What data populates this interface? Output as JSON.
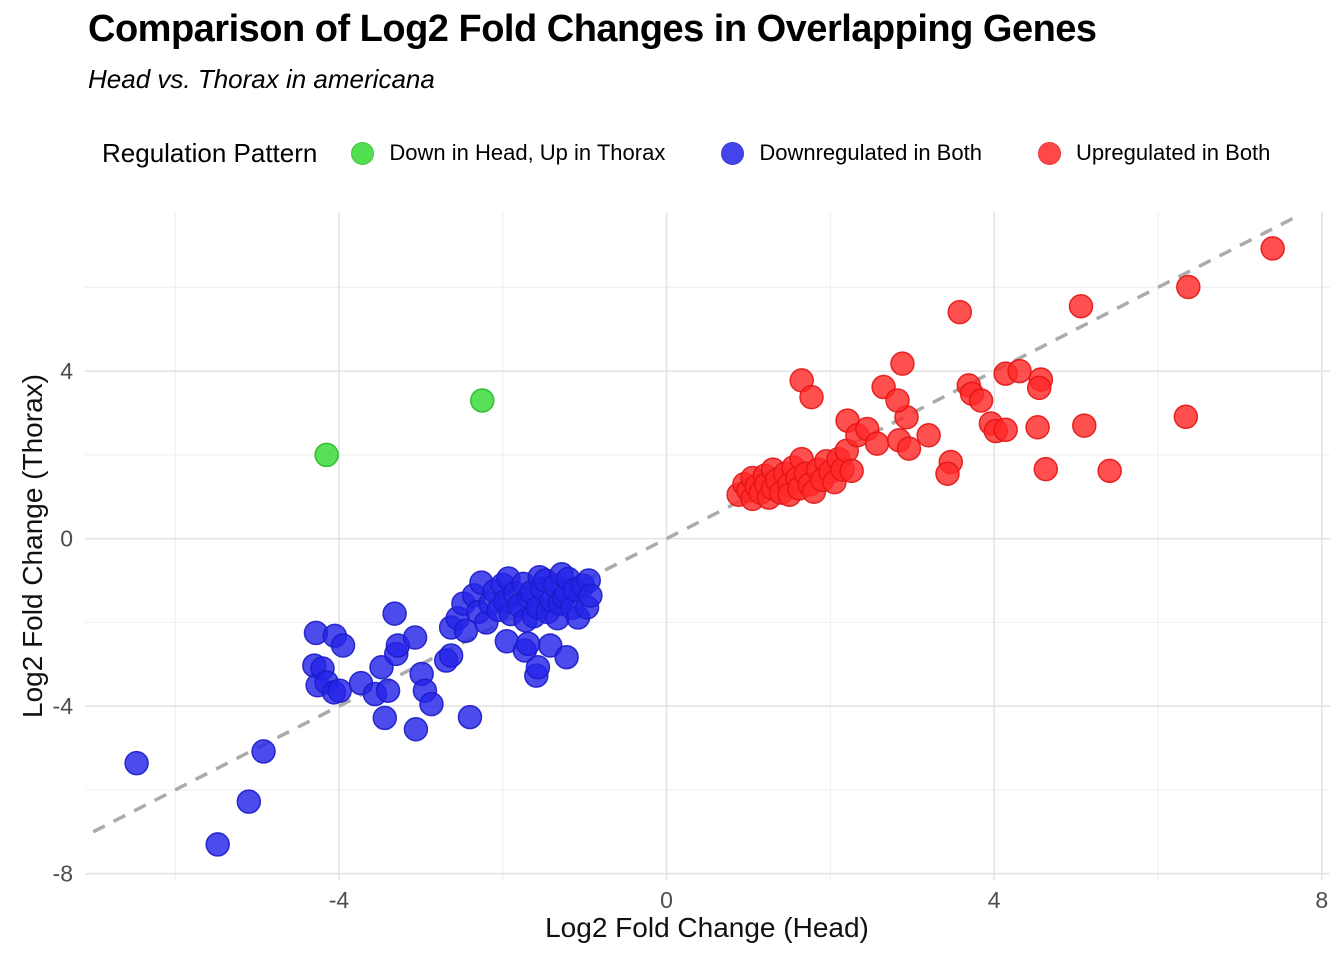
{
  "chart_data": {
    "type": "scatter",
    "title": "Comparison of Log2 Fold Changes in Overlapping Genes",
    "subtitle": "Head vs. Thorax in americana",
    "xlabel": "Log2 Fold Change (Head)",
    "ylabel": "Log2 Fold Change (Thorax)",
    "legend_title": "Regulation Pattern",
    "legend_position": "top",
    "grid": true,
    "xlim": [
      -7.1,
      8.1
    ],
    "ylim": [
      -8.15,
      7.8
    ],
    "x_ticks_major": [
      -4,
      0,
      4,
      8
    ],
    "x_ticks_minor": [
      -6,
      -2,
      2,
      6
    ],
    "y_ticks_major": [
      -8,
      -4,
      0,
      4
    ],
    "y_ticks_minor": [
      -6,
      -2,
      2,
      6
    ],
    "reference_line": {
      "equation": "y = x",
      "slope": 1,
      "intercept": 0,
      "style": "dashed",
      "color": "#ABABAB",
      "x_start": -7.0,
      "x_end": 7.75
    },
    "marker": {
      "radius": 11.5,
      "opacity": 0.82
    },
    "colors": {
      "green": "#33DB33",
      "blue": "#2424E8",
      "red": "#FF2A2A"
    },
    "series": [
      {
        "name": "Down in Head, Up in Thorax",
        "color": "#33DB33",
        "stroke": "#27B827",
        "points": [
          [
            -4.15,
            2.0
          ],
          [
            -2.25,
            3.3
          ]
        ]
      },
      {
        "name": "Downregulated in Both",
        "color": "#2424E8",
        "stroke": "#1B1BC9",
        "points": [
          [
            -6.47,
            -5.36
          ],
          [
            -5.48,
            -7.3
          ],
          [
            -5.1,
            -6.28
          ],
          [
            -4.92,
            -5.08
          ],
          [
            -4.3,
            -3.03
          ],
          [
            -4.28,
            -2.25
          ],
          [
            -4.26,
            -3.5
          ],
          [
            -4.2,
            -3.1
          ],
          [
            -4.15,
            -3.43
          ],
          [
            -4.06,
            -3.67
          ],
          [
            -4.05,
            -2.32
          ],
          [
            -3.99,
            -3.63
          ],
          [
            -3.95,
            -2.55
          ],
          [
            -3.73,
            -3.45
          ],
          [
            -3.56,
            -3.71
          ],
          [
            -3.48,
            -3.07
          ],
          [
            -3.44,
            -4.28
          ],
          [
            -3.4,
            -3.63
          ],
          [
            -3.32,
            -1.79
          ],
          [
            -3.3,
            -2.75
          ],
          [
            -3.28,
            -2.55
          ],
          [
            -3.07,
            -2.36
          ],
          [
            -3.06,
            -4.55
          ],
          [
            -2.99,
            -3.23
          ],
          [
            -2.95,
            -3.63
          ],
          [
            -2.87,
            -3.95
          ],
          [
            -2.69,
            -2.91
          ],
          [
            -2.63,
            -2.79
          ],
          [
            -2.63,
            -2.12
          ],
          [
            -2.4,
            -4.26
          ],
          [
            -2.55,
            -1.9
          ],
          [
            -2.48,
            -1.55
          ],
          [
            -2.45,
            -2.2
          ],
          [
            -2.35,
            -1.35
          ],
          [
            -2.3,
            -1.75
          ],
          [
            -2.26,
            -1.05
          ],
          [
            -2.2,
            -2.0
          ],
          [
            -2.15,
            -1.55
          ],
          [
            -2.1,
            -1.25
          ],
          [
            -2.05,
            -1.7
          ],
          [
            -2.0,
            -1.1
          ],
          [
            -1.97,
            -1.5
          ],
          [
            -1.93,
            -0.95
          ],
          [
            -1.9,
            -1.8
          ],
          [
            -1.85,
            -1.3
          ],
          [
            -1.8,
            -1.6
          ],
          [
            -1.75,
            -1.08
          ],
          [
            -1.72,
            -1.95
          ],
          [
            -1.68,
            -1.4
          ],
          [
            -1.65,
            -1.28
          ],
          [
            -1.62,
            -1.85
          ],
          [
            -1.57,
            -1.64
          ],
          [
            -1.55,
            -0.92
          ],
          [
            -1.52,
            -1.2
          ],
          [
            -1.48,
            -1.0
          ],
          [
            -1.45,
            -1.75
          ],
          [
            -1.4,
            -1.48
          ],
          [
            -1.36,
            -1.12
          ],
          [
            -1.33,
            -1.9
          ],
          [
            -1.3,
            -1.55
          ],
          [
            -1.28,
            -0.85
          ],
          [
            -1.25,
            -1.4
          ],
          [
            -1.22,
            -1.3
          ],
          [
            -1.2,
            -0.96
          ],
          [
            -1.15,
            -1.65
          ],
          [
            -1.12,
            -1.22
          ],
          [
            -1.08,
            -1.88
          ],
          [
            -1.02,
            -1.12
          ],
          [
            -0.97,
            -1.64
          ],
          [
            -0.95,
            -1.0
          ],
          [
            -0.93,
            -1.36
          ],
          [
            -1.95,
            -2.45
          ],
          [
            -1.73,
            -2.67
          ],
          [
            -1.69,
            -2.51
          ],
          [
            -1.59,
            -3.27
          ],
          [
            -1.57,
            -3.07
          ],
          [
            -1.42,
            -2.55
          ],
          [
            -1.22,
            -2.83
          ]
        ]
      },
      {
        "name": "Upregulated in Both",
        "color": "#FF2A2A",
        "stroke": "#E31414",
        "points": [
          [
            0.88,
            1.05
          ],
          [
            0.95,
            1.3
          ],
          [
            1.0,
            1.15
          ],
          [
            1.05,
            0.95
          ],
          [
            1.05,
            1.45
          ],
          [
            1.1,
            1.25
          ],
          [
            1.15,
            1.1
          ],
          [
            1.2,
            1.5
          ],
          [
            1.22,
            1.3
          ],
          [
            1.25,
            0.98
          ],
          [
            1.3,
            1.2
          ],
          [
            1.3,
            1.65
          ],
          [
            1.35,
            1.4
          ],
          [
            1.4,
            1.1
          ],
          [
            1.45,
            1.55
          ],
          [
            1.5,
            1.3
          ],
          [
            1.5,
            1.05
          ],
          [
            1.55,
            1.7
          ],
          [
            1.6,
            1.45
          ],
          [
            1.62,
            1.2
          ],
          [
            1.65,
            1.9
          ],
          [
            1.7,
            1.55
          ],
          [
            1.75,
            1.3
          ],
          [
            1.8,
            1.12
          ],
          [
            1.85,
            1.65
          ],
          [
            1.9,
            1.4
          ],
          [
            1.95,
            1.85
          ],
          [
            2.0,
            1.6
          ],
          [
            2.05,
            1.35
          ],
          [
            2.1,
            1.9
          ],
          [
            2.15,
            1.65
          ],
          [
            2.2,
            2.1
          ],
          [
            2.26,
            1.62
          ],
          [
            2.21,
            2.82
          ],
          [
            2.33,
            2.47
          ],
          [
            2.45,
            2.62
          ],
          [
            2.57,
            2.27
          ],
          [
            2.84,
            2.35
          ],
          [
            2.93,
            2.9
          ],
          [
            2.96,
            2.15
          ],
          [
            3.2,
            2.47
          ],
          [
            3.47,
            1.83
          ],
          [
            3.43,
            1.55
          ],
          [
            1.65,
            3.78
          ],
          [
            1.77,
            3.38
          ],
          [
            2.65,
            3.62
          ],
          [
            2.82,
            3.3
          ],
          [
            2.88,
            4.18
          ],
          [
            3.58,
            5.41
          ],
          [
            3.69,
            3.66
          ],
          [
            3.73,
            3.46
          ],
          [
            3.84,
            3.3
          ],
          [
            3.96,
            2.75
          ],
          [
            4.14,
            3.94
          ],
          [
            4.31,
            4.0
          ],
          [
            4.57,
            3.8
          ],
          [
            4.55,
            3.6
          ],
          [
            5.06,
            5.55
          ],
          [
            4.02,
            2.57
          ],
          [
            4.14,
            2.6
          ],
          [
            4.53,
            2.66
          ],
          [
            5.1,
            2.7
          ],
          [
            4.63,
            1.66
          ],
          [
            5.41,
            1.62
          ],
          [
            6.34,
            2.91
          ],
          [
            6.37,
            6.01
          ],
          [
            7.4,
            6.93
          ]
        ]
      }
    ],
    "style": {
      "grid_major_color": "#E4E4E4",
      "grid_minor_color": "#F0F0F0",
      "tick_label_color": "#4D4D4D",
      "background": "#FFFFFF"
    }
  }
}
